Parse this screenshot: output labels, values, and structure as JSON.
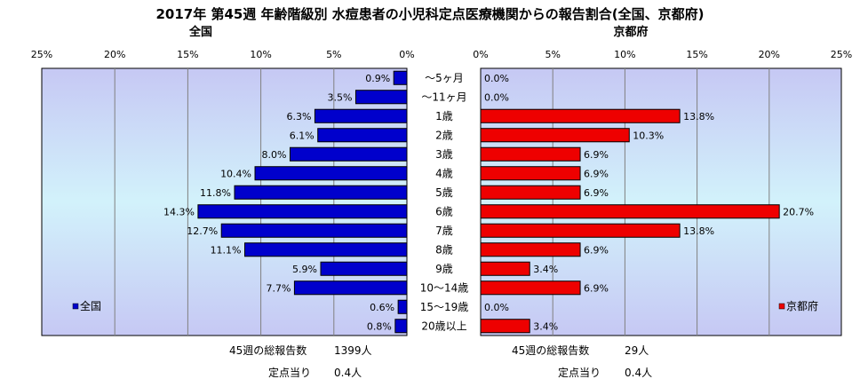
{
  "chart_data": [
    {
      "type": "bar",
      "orientation": "horizontal",
      "direction": "right-to-left",
      "title": "全国",
      "categories": [
        "～5ヶ月",
        "～11ヶ月",
        "1歳",
        "2歳",
        "3歳",
        "4歳",
        "5歳",
        "6歳",
        "7歳",
        "8歳",
        "9歳",
        "10～14歳",
        "15～19歳",
        "20歳以上"
      ],
      "series": [
        {
          "name": "全国",
          "color": "#0000cc",
          "values": [
            0.9,
            3.5,
            6.3,
            6.1,
            8.0,
            10.4,
            11.8,
            14.3,
            12.7,
            11.1,
            5.9,
            7.7,
            0.6,
            0.8
          ],
          "labels": [
            "0.9%",
            "3.5%",
            "6.3%",
            "6.1%",
            "8.0%",
            "10.4%",
            "11.8%",
            "14.3%",
            "12.7%",
            "11.1%",
            "5.9%",
            "7.7%",
            "0.6%",
            "0.8%"
          ]
        }
      ],
      "xlim": [
        0,
        25
      ],
      "ticks": [
        0,
        5,
        10,
        15,
        20,
        25
      ],
      "tick_labels": [
        "0%",
        "5%",
        "10%",
        "15%",
        "20%",
        "25%"
      ],
      "legend": "bottom-left",
      "grid": true
    },
    {
      "type": "bar",
      "orientation": "horizontal",
      "direction": "left-to-right",
      "title": "京都府",
      "categories": [
        "～5ヶ月",
        "～11ヶ月",
        "1歳",
        "2歳",
        "3歳",
        "4歳",
        "5歳",
        "6歳",
        "7歳",
        "8歳",
        "9歳",
        "10～14歳",
        "15～19歳",
        "20歳以上"
      ],
      "series": [
        {
          "name": "京都府",
          "color": "#ee0000",
          "values": [
            0.0,
            0.0,
            13.8,
            10.3,
            6.9,
            6.9,
            6.9,
            20.7,
            13.8,
            6.9,
            3.4,
            6.9,
            0.0,
            3.4
          ],
          "labels": [
            "0.0%",
            "0.0%",
            "13.8%",
            "10.3%",
            "6.9%",
            "6.9%",
            "6.9%",
            "20.7%",
            "13.8%",
            "6.9%",
            "3.4%",
            "6.9%",
            "0.0%",
            "3.4%"
          ]
        }
      ],
      "xlim": [
        0,
        25
      ],
      "ticks": [
        0,
        5,
        10,
        15,
        20,
        25
      ],
      "tick_labels": [
        "0%",
        "5%",
        "10%",
        "15%",
        "20%",
        "25%"
      ],
      "legend": "bottom-right",
      "grid": true
    }
  ],
  "page": {
    "title": "2017年 第45週 年齢階級別 水痘患者の小児科定点医療機関からの報告割合(全国、京都府)",
    "left_panel_title": "全国",
    "right_panel_title": "京都府",
    "legend_left": "全国",
    "legend_right": "京都府"
  },
  "footer": {
    "national_total_label": "45週の総報告数",
    "national_total_value": "1399人",
    "national_per_label": "定点当り",
    "national_per_value": "0.4人",
    "kyoto_total_label": "45週の総報告数",
    "kyoto_total_value": "29人",
    "kyoto_per_label": "定点当り",
    "kyoto_per_value": "0.4人"
  }
}
